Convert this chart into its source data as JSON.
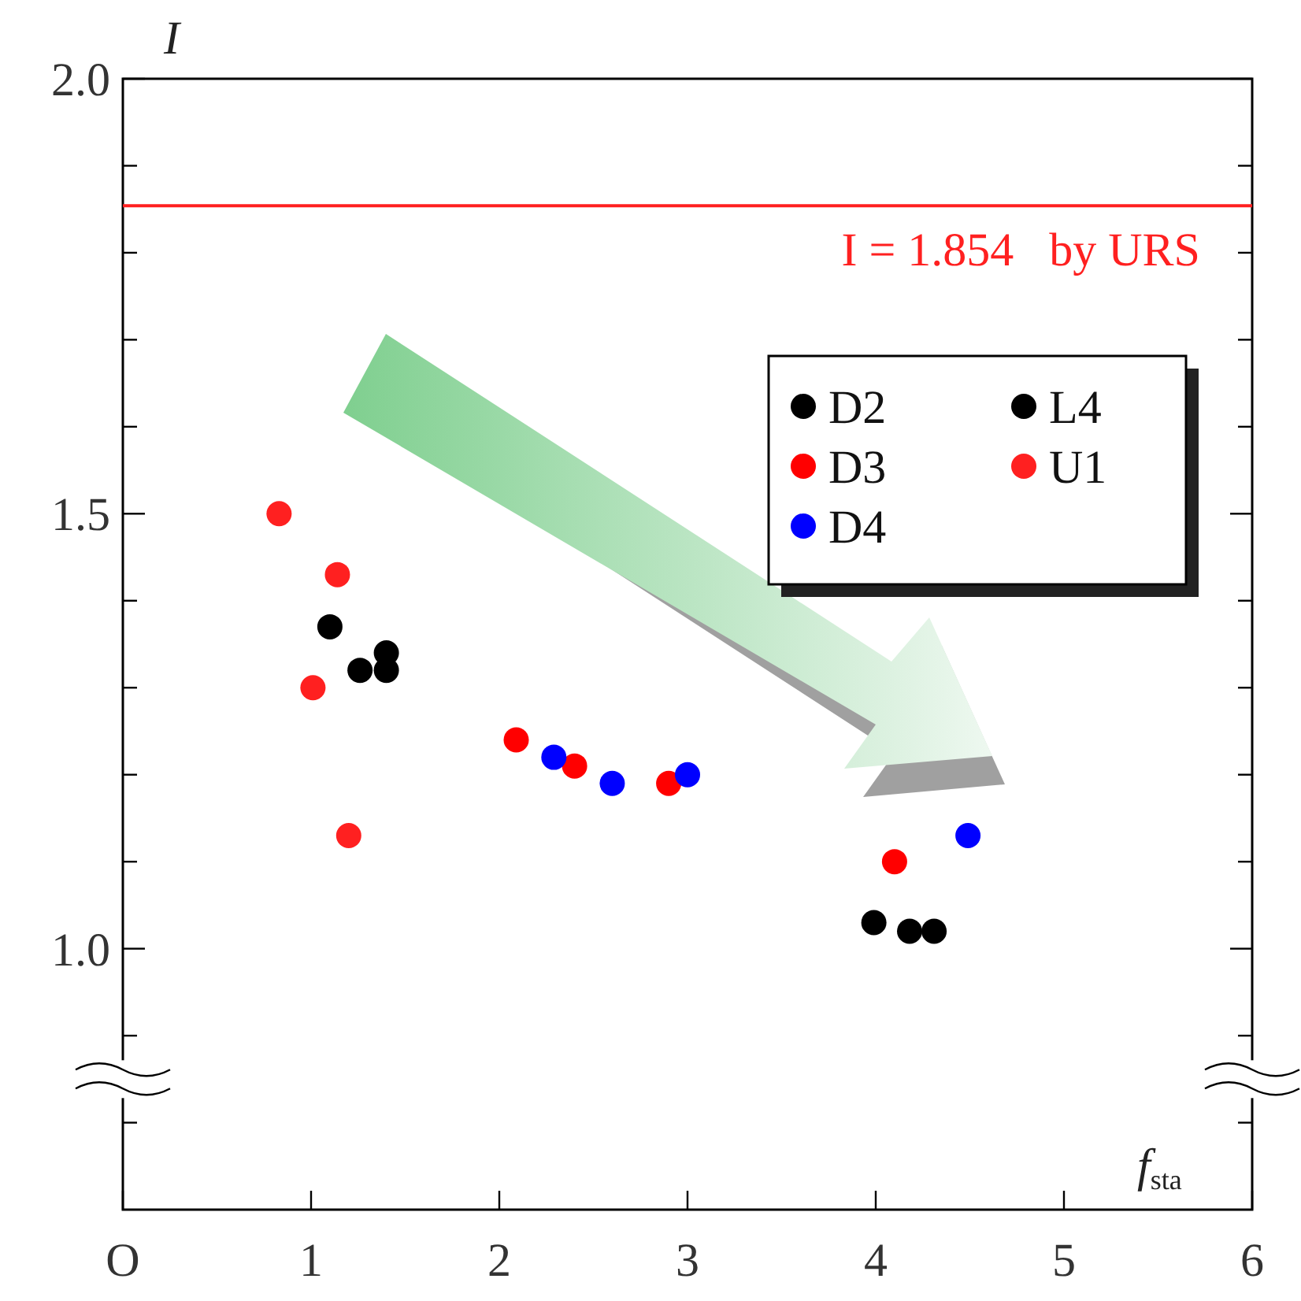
{
  "chart_data": {
    "type": "scatter",
    "xlabel": "f$_{sta}$",
    "ylabel": "I",
    "xlim": [
      0,
      6
    ],
    "ylim": [
      0.7,
      2.0
    ],
    "xticks": [
      {
        "value": 0,
        "label": "O"
      },
      1,
      2,
      3,
      4,
      5,
      6
    ],
    "yticks": [
      {
        "value": 0.8,
        "label": null
      },
      {
        "value": 0.9,
        "label": null
      },
      {
        "value": 1.0,
        "label": "1.0"
      },
      {
        "value": 1.1,
        "label": null
      },
      {
        "value": 1.2,
        "label": null
      },
      {
        "value": 1.3,
        "label": null
      },
      {
        "value": 1.4,
        "label": null
      },
      {
        "value": 1.5,
        "label": "1.5"
      },
      {
        "value": 1.6,
        "label": null
      },
      {
        "value": 1.7,
        "label": null
      },
      {
        "value": 1.8,
        "label": null
      },
      {
        "value": 1.9,
        "label": null
      },
      {
        "value": 2.0,
        "label": "2.0"
      }
    ],
    "legend": "top right",
    "marker": "circle",
    "ref_lines": [
      {
        "axis": "y",
        "value": 1.854,
        "label": "I = 1.854   by URS",
        "color": "#ff2020"
      }
    ],
    "series": [
      {
        "name": "D2",
        "color": "#000000",
        "x": [
          1.1,
          1.26,
          1.4,
          1.4
        ],
        "values": [
          1.37,
          1.32,
          1.34,
          1.32
        ]
      },
      {
        "name": "D3",
        "color": "#ff0000",
        "x": [
          2.09,
          2.4,
          2.9,
          4.1
        ],
        "values": [
          1.24,
          1.21,
          1.19,
          1.1
        ]
      },
      {
        "name": "D4",
        "color": "#0000ff",
        "x": [
          2.29,
          2.6,
          3.0,
          4.49
        ],
        "values": [
          1.22,
          1.19,
          1.2,
          1.13
        ]
      },
      {
        "name": "L4",
        "color": "#000000",
        "x": [
          3.99,
          4.18,
          4.31
        ],
        "values": [
          1.03,
          1.02,
          1.02
        ]
      },
      {
        "name": "U1",
        "color": "#ff2020",
        "x": [
          0.83,
          1.14,
          1.01,
          1.2
        ],
        "values": [
          1.5,
          1.43,
          1.3,
          1.13
        ]
      }
    ]
  }
}
